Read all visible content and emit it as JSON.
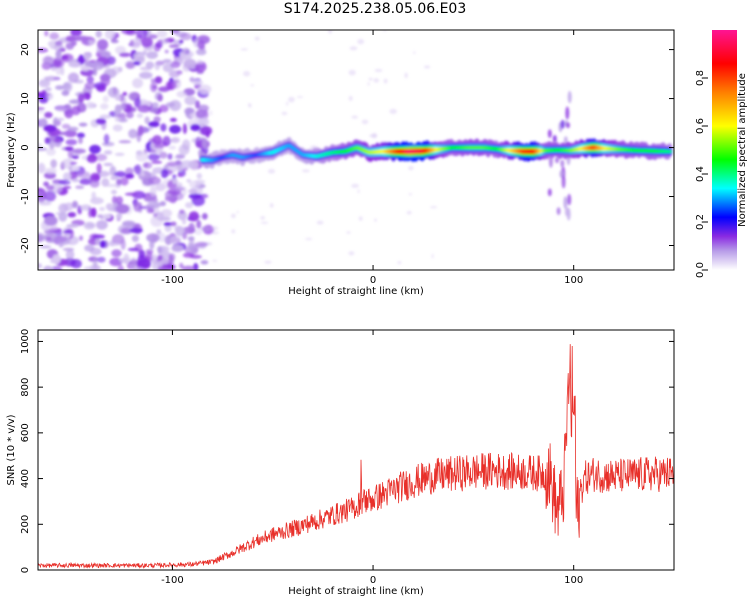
{
  "title": "S174.2025.238.05.06.E03",
  "chart_data": [
    {
      "type": "heatmap",
      "xlabel": "Height of straight line (km)",
      "ylabel": "Frequency (Hz)",
      "xlim": [
        -167,
        150
      ],
      "ylim": [
        -25,
        24
      ],
      "x_ticks": [
        -100,
        0,
        100
      ],
      "x_tick_labels": [
        "-100",
        "0",
        "100"
      ],
      "y_ticks": [
        20,
        10,
        0,
        -10,
        -20
      ],
      "y_tick_labels": [
        "20",
        "10",
        "0",
        "-10",
        "-20"
      ],
      "colorbar": {
        "label": "Normalized spectral amplitude",
        "range": [
          0,
          1
        ],
        "ticks": [
          0.0,
          0.2,
          0.4,
          0.6,
          0.8
        ],
        "tick_labels": [
          "0.0",
          "0.2",
          "0.4",
          "0.6",
          "0.8"
        ],
        "colors": [
          "#ffffff",
          "#8a2be2",
          "#0000ff",
          "#00ffff",
          "#00ff00",
          "#ffff00",
          "#ff7f00",
          "#ff0000",
          "#ff1493"
        ]
      },
      "noise_region_km": [
        -167,
        -82
      ],
      "ridge": [
        {
          "x": -85,
          "y": -2.5,
          "a": 0.35
        },
        {
          "x": -80,
          "y": -2.6,
          "a": 0.3
        },
        {
          "x": -75,
          "y": -2.0,
          "a": 0.25
        },
        {
          "x": -70,
          "y": -1.5,
          "a": 0.3
        },
        {
          "x": -65,
          "y": -2.0,
          "a": 0.3
        },
        {
          "x": -58,
          "y": -1.5,
          "a": 0.25
        },
        {
          "x": -50,
          "y": -1.0,
          "a": 0.35
        },
        {
          "x": -42,
          "y": 0.5,
          "a": 0.3
        },
        {
          "x": -35,
          "y": -1.5,
          "a": 0.3
        },
        {
          "x": -28,
          "y": -1.8,
          "a": 0.35
        },
        {
          "x": -20,
          "y": -1.0,
          "a": 0.4
        },
        {
          "x": -14,
          "y": -0.8,
          "a": 0.45
        },
        {
          "x": -8,
          "y": 0.0,
          "a": 0.5
        },
        {
          "x": -2,
          "y": -1.0,
          "a": 0.55
        },
        {
          "x": 5,
          "y": -0.8,
          "a": 0.6
        },
        {
          "x": 12,
          "y": -0.8,
          "a": 0.8
        },
        {
          "x": 18,
          "y": -0.8,
          "a": 0.95
        },
        {
          "x": 25,
          "y": -0.7,
          "a": 0.9
        },
        {
          "x": 32,
          "y": -0.4,
          "a": 0.6
        },
        {
          "x": 40,
          "y": 0.0,
          "a": 0.45
        },
        {
          "x": 48,
          "y": 0.0,
          "a": 0.5
        },
        {
          "x": 55,
          "y": 0.0,
          "a": 0.5
        },
        {
          "x": 62,
          "y": -0.3,
          "a": 0.45
        },
        {
          "x": 68,
          "y": -0.6,
          "a": 0.6
        },
        {
          "x": 75,
          "y": -0.8,
          "a": 0.8
        },
        {
          "x": 80,
          "y": -0.8,
          "a": 0.85
        },
        {
          "x": 86,
          "y": -0.6,
          "a": 0.5
        },
        {
          "x": 92,
          "y": -0.5,
          "a": 0.45
        },
        {
          "x": 98,
          "y": -0.6,
          "a": 0.5
        },
        {
          "x": 104,
          "y": -0.2,
          "a": 0.6
        },
        {
          "x": 110,
          "y": 0.0,
          "a": 0.8
        },
        {
          "x": 116,
          "y": -0.2,
          "a": 0.6
        },
        {
          "x": 124,
          "y": -0.4,
          "a": 0.5
        },
        {
          "x": 132,
          "y": -0.6,
          "a": 0.45
        },
        {
          "x": 140,
          "y": -0.7,
          "a": 0.45
        },
        {
          "x": 148,
          "y": -0.8,
          "a": 0.4
        }
      ]
    },
    {
      "type": "line",
      "xlabel": "Height of straight line (km)",
      "ylabel": "SNR (10 * v/v)",
      "xlim": [
        -167,
        150
      ],
      "ylim": [
        0,
        1050
      ],
      "x_ticks": [
        -100,
        0,
        100
      ],
      "x_tick_labels": [
        "-100",
        "0",
        "100"
      ],
      "y_ticks": [
        0,
        200,
        400,
        600,
        800,
        1000
      ],
      "y_tick_labels": [
        "0",
        "200",
        "400",
        "600",
        "800",
        "1000"
      ],
      "series": [
        {
          "name": "SNR",
          "color": "#e8302a",
          "x": [
            -167,
            -150,
            -130,
            -110,
            -90,
            -80,
            -70,
            -60,
            -50,
            -40,
            -30,
            -20,
            -10,
            -5,
            0,
            10,
            20,
            30,
            40,
            50,
            60,
            70,
            80,
            88,
            92,
            95,
            98,
            100,
            102,
            105,
            110,
            120,
            130,
            140,
            150
          ],
          "values": [
            20,
            20,
            20,
            20,
            25,
            35,
            75,
            120,
            155,
            180,
            210,
            240,
            270,
            300,
            310,
            350,
            385,
            410,
            420,
            430,
            435,
            430,
            425,
            420,
            250,
            350,
            900,
            350,
            250,
            400,
            420,
            410,
            415,
            420,
            420
          ]
        }
      ]
    }
  ]
}
